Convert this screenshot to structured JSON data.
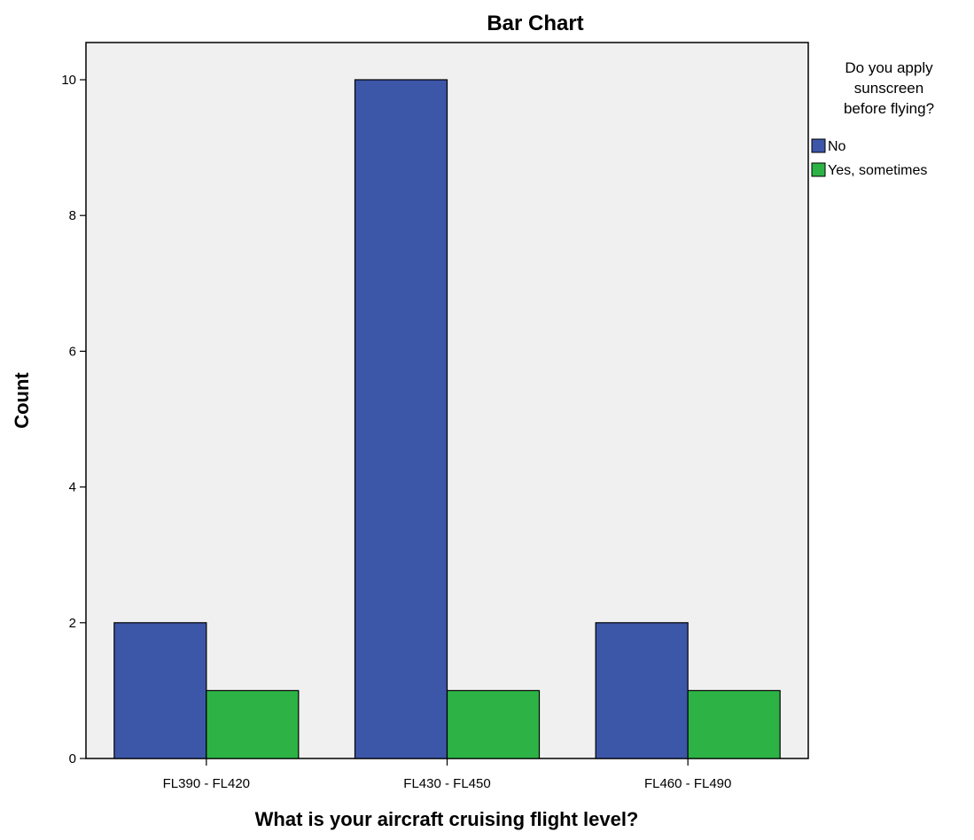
{
  "chart_data": {
    "type": "bar",
    "title": "Bar Chart",
    "xlabel": "What is your aircraft cruising flight level?",
    "ylabel": "Count",
    "categories": [
      "FL390 - FL420",
      "FL430 - FL450",
      "FL460 - FL490"
    ],
    "series": [
      {
        "name": "No",
        "values": [
          2,
          10,
          2
        ],
        "color": "#3c56a8"
      },
      {
        "name": "Yes, sometimes",
        "values": [
          1,
          1,
          1
        ],
        "color": "#2db345"
      }
    ],
    "ylim": [
      0,
      10.5
    ],
    "yticks": [
      "0",
      "2",
      "4",
      "6",
      "8",
      "10"
    ],
    "legend": {
      "title_lines": [
        "Do you apply",
        "sunscreen",
        "before flying?"
      ],
      "placement": "right"
    },
    "plot_background": "#f0f0f0",
    "grid": false
  }
}
